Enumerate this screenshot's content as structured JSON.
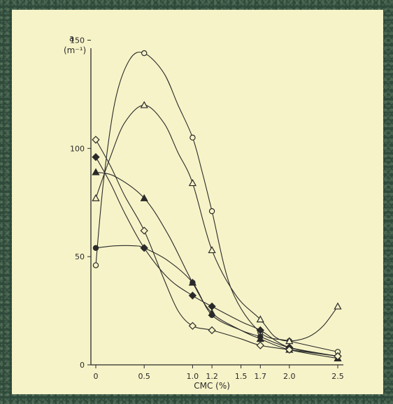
{
  "chart_data": {
    "type": "line",
    "title": "",
    "ylabel_symbol": "a",
    "ylabel_unit": "(m⁻¹)",
    "xlabel": "CMC  (%)",
    "xlim": [
      0,
      2.5
    ],
    "ylim": [
      0,
      155
    ],
    "x_ticks": [
      {
        "value": 0,
        "label": "0"
      },
      {
        "value": 0.5,
        "label": "0.5"
      },
      {
        "value": 1.0,
        "label": "1.0"
      },
      {
        "value": 1.2,
        "label": "1.2"
      },
      {
        "value": 1.5,
        "label": "1.5"
      },
      {
        "value": 1.7,
        "label": "1.7"
      },
      {
        "value": 2.0,
        "label": "2.0"
      },
      {
        "value": 2.5,
        "label": "2.5"
      }
    ],
    "y_ticks": [
      {
        "value": 0,
        "label": "0"
      },
      {
        "value": 50,
        "label": "50"
      },
      {
        "value": 100,
        "label": "100"
      },
      {
        "value": 150,
        "label": "150"
      }
    ],
    "grid": false,
    "legend": "none",
    "series": [
      {
        "marker": "open-circle",
        "x": [
          0,
          0.5,
          1.0,
          1.2,
          1.7,
          2.0,
          2.5
        ],
        "y": [
          46,
          144,
          105,
          71,
          15,
          11,
          6
        ],
        "curve_x": [
          0,
          0.08,
          0.2,
          0.35,
          0.5,
          0.7,
          0.85,
          1.0,
          1.1,
          1.2,
          1.4,
          1.7,
          2.0,
          2.5
        ],
        "curve_y": [
          46,
          85,
          122,
          141,
          144,
          135,
          120,
          105,
          89,
          71,
          35,
          15,
          11,
          6
        ]
      },
      {
        "marker": "open-triangle",
        "x": [
          0,
          0.5,
          1.0,
          1.2,
          1.7,
          2.0,
          2.5
        ],
        "y": [
          77,
          120,
          84,
          53,
          21,
          11,
          27
        ],
        "curve_x": [
          0,
          0.15,
          0.3,
          0.5,
          0.7,
          0.85,
          1.0,
          1.2,
          1.45,
          1.7,
          1.85,
          2.0,
          2.2,
          2.35,
          2.5
        ],
        "curve_y": [
          77,
          96,
          112,
          120,
          112,
          98,
          84,
          53,
          32,
          21,
          13,
          11,
          13,
          18,
          27
        ]
      },
      {
        "marker": "filled-triangle",
        "x": [
          0,
          0.5,
          1.0,
          1.2,
          1.7,
          2.0,
          2.5
        ],
        "y": [
          89,
          77,
          38,
          24,
          12,
          7,
          3
        ],
        "curve_x": [
          0,
          0.2,
          0.5,
          0.75,
          1.0,
          1.2,
          1.5,
          1.7,
          2.0,
          2.5
        ],
        "curve_y": [
          89,
          87,
          77,
          60,
          38,
          24,
          16,
          12,
          7,
          3
        ]
      },
      {
        "marker": "filled-circle",
        "x": [
          0,
          0.5,
          1.0,
          1.2,
          1.7,
          2.0,
          2.5
        ],
        "y": [
          54,
          54,
          38,
          23,
          13,
          8,
          4
        ],
        "curve_x": [
          0,
          0.2,
          0.4,
          0.5,
          0.75,
          1.0,
          1.2,
          1.5,
          1.7,
          2.0,
          2.5
        ],
        "curve_y": [
          54,
          55,
          55,
          54,
          48,
          38,
          23,
          16,
          13,
          8,
          4
        ]
      },
      {
        "marker": "filled-diamond",
        "x": [
          0,
          0.5,
          1.0,
          1.2,
          1.7,
          2.0,
          2.5
        ],
        "y": [
          96,
          54,
          32,
          27,
          16,
          8,
          4
        ],
        "curve_x": [
          0,
          0.15,
          0.3,
          0.5,
          0.75,
          1.0,
          1.2,
          1.5,
          1.7,
          2.0,
          2.5
        ],
        "curve_y": [
          96,
          84,
          70,
          54,
          40,
          32,
          27,
          20,
          16,
          8,
          4
        ]
      },
      {
        "marker": "open-diamond",
        "x": [
          0,
          0.5,
          1.0,
          1.2,
          1.7,
          2.0,
          2.5
        ],
        "y": [
          104,
          62,
          18,
          16,
          9,
          7,
          4
        ],
        "curve_x": [
          0,
          0.15,
          0.3,
          0.5,
          0.7,
          0.85,
          1.0,
          1.2,
          1.5,
          1.7,
          2.0,
          2.5
        ],
        "curve_y": [
          104,
          92,
          78,
          62,
          40,
          25,
          18,
          16,
          12,
          9,
          7,
          4
        ]
      }
    ]
  }
}
